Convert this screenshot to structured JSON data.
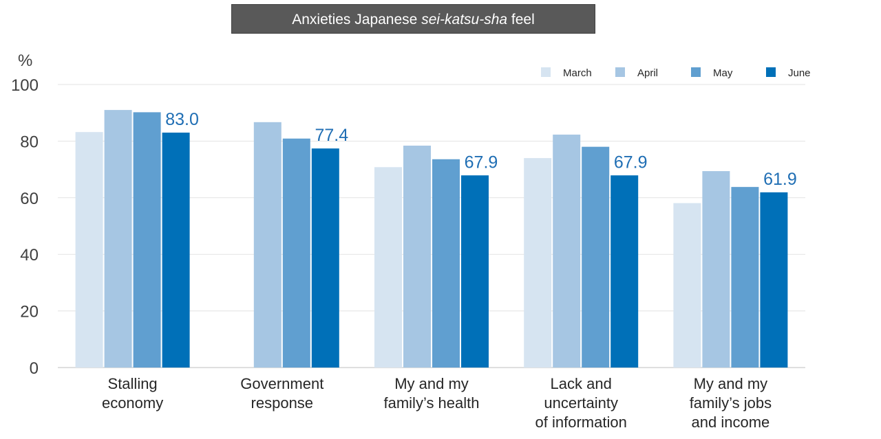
{
  "chart_data": {
    "type": "bar",
    "title_pre": "Anxieties Japanese ",
    "title_em": "sei-katsu-sha",
    "title_post": "  feel",
    "yunit": "%",
    "ylim": [
      0,
      100
    ],
    "yticks": [
      "0",
      "20",
      "40",
      "60",
      "80",
      "100"
    ],
    "grid": true,
    "legend_position": "top-right",
    "categories": [
      [
        "Stalling",
        "economy"
      ],
      [
        "Government",
        "response"
      ],
      [
        "My and my",
        "family’s health"
      ],
      [
        "Lack and",
        "uncertainty",
        "of information"
      ],
      [
        "My and my",
        "family’s jobs",
        "and income"
      ]
    ],
    "series": [
      {
        "name": "March",
        "color": "#d6e4f1",
        "values": [
          83.2,
          null,
          70.8,
          74.0,
          58.1
        ]
      },
      {
        "name": "April",
        "color": "#a6c6e3",
        "values": [
          91.0,
          86.7,
          78.4,
          82.3,
          69.4
        ]
      },
      {
        "name": "May",
        "color": "#609fd0",
        "values": [
          90.2,
          80.9,
          73.6,
          78.0,
          63.8
        ]
      },
      {
        "name": "June",
        "color": "#0070b8",
        "values": [
          83.0,
          77.4,
          67.9,
          67.9,
          61.9
        ]
      }
    ],
    "data_labels": [
      "83.0",
      "77.4",
      "67.9",
      "67.9",
      "61.9"
    ]
  }
}
